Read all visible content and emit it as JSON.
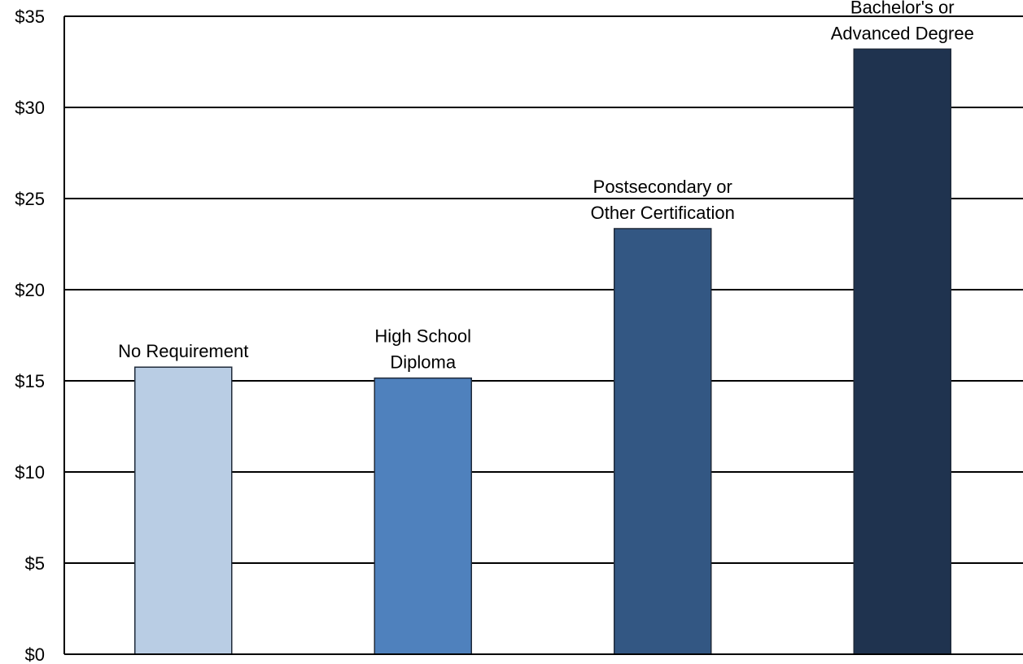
{
  "chart_data": {
    "type": "bar",
    "title": "",
    "xlabel": "",
    "ylabel": "",
    "ylim": [
      0,
      35
    ],
    "y_tick_step": 5,
    "y_tick_prefix": "$",
    "grid": true,
    "legend": "none",
    "categories": [
      [
        "No Requirement"
      ],
      [
        "High School",
        "Diploma"
      ],
      [
        "Postsecondary or",
        "Other Certification"
      ],
      [
        "Bachelor's or",
        "Advanced Degree"
      ]
    ],
    "values": [
      15.75,
      15.15,
      23.35,
      33.2
    ],
    "colors": [
      "#b9cde4",
      "#4f81bd",
      "#335783",
      "#1f334f"
    ]
  }
}
